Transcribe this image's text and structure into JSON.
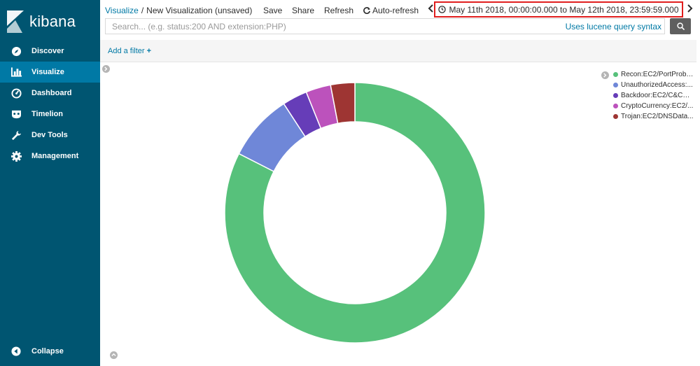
{
  "sidebar": {
    "logo_text": "kibana",
    "items": [
      {
        "label": "Discover",
        "icon": "compass-icon",
        "active": false
      },
      {
        "label": "Visualize",
        "icon": "bar-chart-icon",
        "active": true
      },
      {
        "label": "Dashboard",
        "icon": "gauge-icon",
        "active": false
      },
      {
        "label": "Timelion",
        "icon": "timelion-mask-icon",
        "active": false
      },
      {
        "label": "Dev Tools",
        "icon": "wrench-icon",
        "active": false
      },
      {
        "label": "Management",
        "icon": "gear-icon",
        "active": false
      }
    ],
    "collapse_label": "Collapse"
  },
  "header": {
    "breadcrumb_root": "Visualize",
    "breadcrumb_separator": "/",
    "breadcrumb_current": "New Visualization (unsaved)",
    "save_label": "Save",
    "share_label": "Share",
    "refresh_label": "Refresh",
    "auto_refresh_label": "Auto-refresh",
    "time_range": "May 11th 2018, 00:00:00.000 to May 12th 2018, 23:59:59.000"
  },
  "search": {
    "placeholder": "Search... (e.g. status:200 AND extension:PHP)",
    "value": "",
    "syntax_link": "Uses lucene query syntax"
  },
  "filters": {
    "add_filter_label": "Add a filter",
    "add_icon": "+"
  },
  "colors": {
    "sidebar_bg": "#005571",
    "sidebar_active": "#0079a5",
    "link": "#0079a5",
    "highlight_border": "#e01e1e"
  },
  "chart_data": {
    "type": "pie",
    "donut": true,
    "legend_position": "top-right",
    "slices": [
      {
        "label": "Recon:EC2/PortProbe...",
        "value": 82.5,
        "color": "#57c17b"
      },
      {
        "label": "UnauthorizedAccess:...",
        "value": 8.3,
        "color": "#6f87d8"
      },
      {
        "label": "Backdoor:EC2/C&CAc...",
        "value": 3.1,
        "color": "#663db8"
      },
      {
        "label": "CryptoCurrency:EC2/...",
        "value": 3.1,
        "color": "#bc52bc"
      },
      {
        "label": "Trojan:EC2/DNSData...",
        "value": 3.0,
        "color": "#9e3533"
      }
    ]
  }
}
